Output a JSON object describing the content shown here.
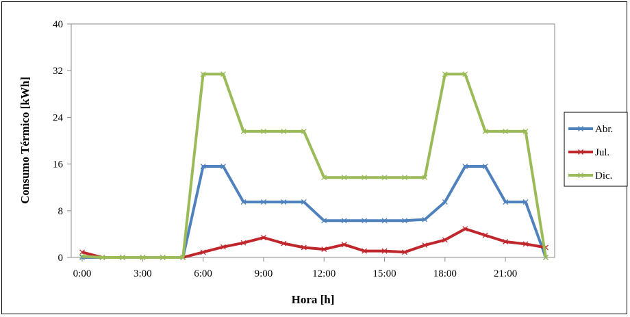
{
  "chart_data": {
    "type": "line",
    "xlabel": "Hora [h]",
    "ylabel": "Consumo Térmico [kWh]",
    "ylim": [
      0,
      40
    ],
    "xlim": [
      0,
      23
    ],
    "yticks": [
      0,
      8,
      16,
      24,
      32,
      40
    ],
    "xticks": [
      {
        "value": 0,
        "label": "0:00"
      },
      {
        "value": 3,
        "label": "3:00"
      },
      {
        "value": 6,
        "label": "6:00"
      },
      {
        "value": 9,
        "label": "9:00"
      },
      {
        "value": 12,
        "label": "12:00"
      },
      {
        "value": 15,
        "label": "15:00"
      },
      {
        "value": 18,
        "label": "18:00"
      },
      {
        "value": 21,
        "label": "21:00"
      }
    ],
    "x": [
      0,
      1,
      2,
      3,
      4,
      5,
      6,
      7,
      8,
      9,
      10,
      11,
      12,
      13,
      14,
      15,
      16,
      17,
      18,
      19,
      20,
      21,
      22,
      23
    ],
    "grid": false,
    "legend_position": "right",
    "series": [
      {
        "name": "Abr.",
        "color": "#4F81BD",
        "values": [
          0,
          0,
          0,
          0,
          0,
          0,
          15.6,
          15.6,
          9.5,
          9.5,
          9.5,
          9.5,
          6.3,
          6.3,
          6.3,
          6.3,
          6.3,
          6.5,
          9.5,
          15.6,
          15.6,
          9.5,
          9.5,
          0
        ]
      },
      {
        "name": "Jul.",
        "color": "#C0272D",
        "values": [
          0.9,
          0,
          0,
          0,
          0,
          0,
          0.9,
          1.8,
          2.5,
          3.4,
          2.4,
          1.7,
          1.4,
          2.2,
          1.1,
          1.1,
          0.9,
          2.1,
          3.0,
          4.9,
          3.8,
          2.7,
          2.3,
          1.7
        ]
      },
      {
        "name": "Dic.",
        "color": "#9BBB59",
        "values": [
          0.2,
          0,
          0,
          0,
          0,
          0,
          31.4,
          31.4,
          21.6,
          21.6,
          21.6,
          21.6,
          13.7,
          13.7,
          13.7,
          13.7,
          13.7,
          13.7,
          31.4,
          31.4,
          21.6,
          21.6,
          21.6,
          0
        ]
      }
    ]
  }
}
